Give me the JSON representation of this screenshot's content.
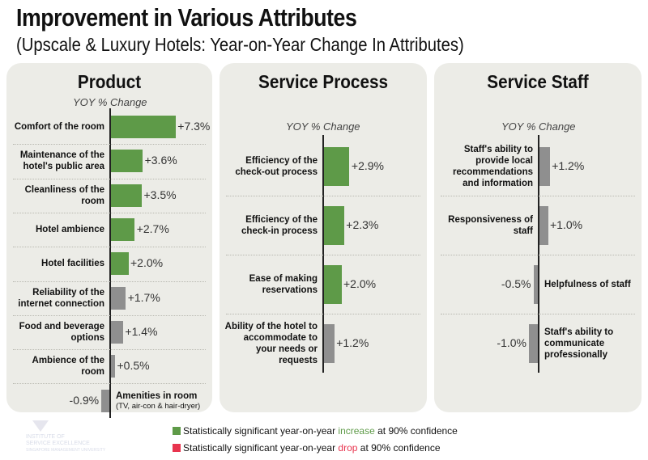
{
  "title": "Improvement in Various Attributes",
  "subtitle": "(Upscale & Luxury Hotels: Year-on-Year Change In Attributes)",
  "colors": {
    "significant_increase": "#5e9a48",
    "not_significant": "#8f8f8f",
    "significant_drop": "#e8344e",
    "panel_bg": "#ecece7"
  },
  "chart_data": [
    {
      "type": "bar",
      "orientation": "horizontal",
      "title": "Product",
      "xlabel": "YOY % Change",
      "categories": [
        "Comfort of the room",
        "Maintenance of the hotel's public area",
        "Cleanliness of the room",
        "Hotel ambience",
        "Hotel facilities",
        "Reliability of the internet connection",
        "Food and beverage options",
        "Ambience of the room",
        "Amenities in room"
      ],
      "category_notes": [
        "",
        "",
        "",
        "",
        "",
        "",
        "",
        "",
        "(TV, air-con & hair-dryer)"
      ],
      "values": [
        7.3,
        3.6,
        3.5,
        2.7,
        2.0,
        1.7,
        1.4,
        0.5,
        -0.9
      ],
      "value_labels": [
        "+7.3%",
        "+3.6%",
        "+3.5%",
        "+2.7%",
        "+2.0%",
        "+1.7%",
        "+1.4%",
        "+0.5%",
        "-0.9%"
      ],
      "significance": [
        "increase",
        "increase",
        "increase",
        "increase",
        "increase",
        "none",
        "none",
        "none",
        "none"
      ]
    },
    {
      "type": "bar",
      "orientation": "horizontal",
      "title": "Service Process",
      "xlabel": "YOY % Change",
      "categories": [
        "Efficiency of the check-out process",
        "Efficiency of the check-in process",
        "Ease of making reservations",
        "Ability of the hotel to accommodate to your needs or requests"
      ],
      "values": [
        2.9,
        2.3,
        2.0,
        1.2
      ],
      "value_labels": [
        "+2.9%",
        "+2.3%",
        "+2.0%",
        "+1.2%"
      ],
      "significance": [
        "increase",
        "increase",
        "increase",
        "none"
      ]
    },
    {
      "type": "bar",
      "orientation": "horizontal",
      "title": "Service Staff",
      "xlabel": "YOY % Change",
      "categories": [
        "Staff's ability to provide local recommendations and information",
        "Responsiveness of staff",
        "Helpfulness of staff",
        "Staff's ability to communicate professionally"
      ],
      "values": [
        1.2,
        1.0,
        -0.5,
        -1.0
      ],
      "value_labels": [
        "+1.2%",
        "+1.0%",
        "-0.5%",
        "-1.0%"
      ],
      "significance": [
        "none",
        "none",
        "none",
        "none"
      ]
    }
  ],
  "legend": {
    "increase": {
      "prefix": "Statistically significant year-on-year ",
      "keyword": "increase",
      "suffix": " at 90% confidence"
    },
    "drop": {
      "prefix": "Statistically significant year-on-year ",
      "keyword": "drop",
      "suffix": " at 90% confidence"
    }
  },
  "logo": {
    "line1": "INSTITUTE OF",
    "line2": "SERVICE EXCELLENCE",
    "line3": "SINGAPORE MANAGEMENT UNIVERSITY"
  }
}
